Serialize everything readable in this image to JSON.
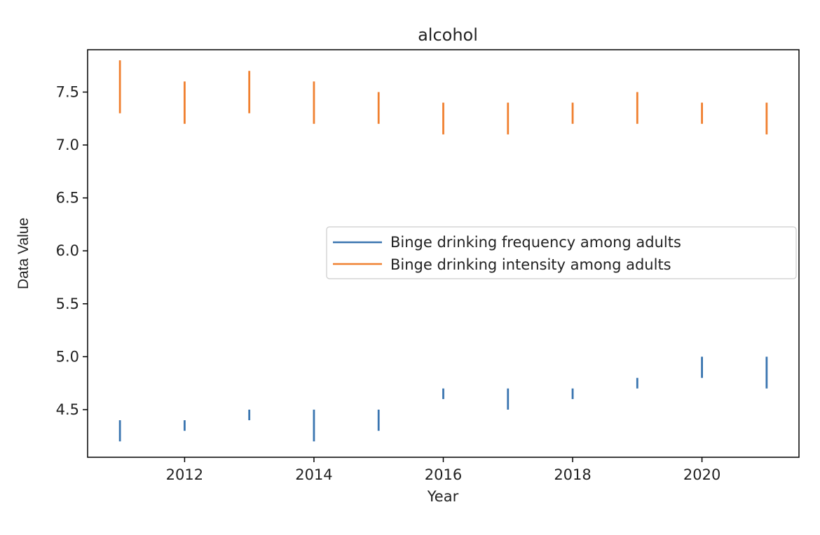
{
  "chart_data": {
    "type": "errorbar",
    "title": "alcohol",
    "xlabel": "Year",
    "ylabel": "Data Value",
    "xlim": [
      2010.5,
      2021.5
    ],
    "ylim": [
      4.05,
      7.9
    ],
    "x_ticks": [
      2012,
      2014,
      2016,
      2018,
      2020
    ],
    "x_tick_labels": [
      "2012",
      "2014",
      "2016",
      "2018",
      "2020"
    ],
    "y_ticks": [
      4.5,
      5.0,
      5.5,
      6.0,
      6.5,
      7.0,
      7.5
    ],
    "y_tick_labels": [
      "4.5",
      "5.0",
      "5.5",
      "6.0",
      "6.5",
      "7.0",
      "7.5"
    ],
    "grid": false,
    "legend_position": "center-right",
    "series": [
      {
        "name": "Binge drinking frequency among adults",
        "color": "#3a75b0",
        "x": [
          2011,
          2012,
          2013,
          2014,
          2015,
          2016,
          2017,
          2018,
          2019,
          2020,
          2021
        ],
        "low": [
          4.2,
          4.3,
          4.4,
          4.2,
          4.3,
          4.6,
          4.5,
          4.6,
          4.7,
          4.8,
          4.7
        ],
        "high": [
          4.4,
          4.4,
          4.5,
          4.5,
          4.5,
          4.7,
          4.7,
          4.7,
          4.8,
          5.0,
          5.0
        ]
      },
      {
        "name": "Binge drinking intensity among adults",
        "color": "#f08030",
        "x": [
          2011,
          2012,
          2013,
          2014,
          2015,
          2016,
          2017,
          2018,
          2019,
          2020,
          2021
        ],
        "low": [
          7.3,
          7.2,
          7.3,
          7.2,
          7.2,
          7.1,
          7.1,
          7.2,
          7.2,
          7.2,
          7.1
        ],
        "high": [
          7.8,
          7.6,
          7.7,
          7.6,
          7.5,
          7.4,
          7.4,
          7.4,
          7.5,
          7.4,
          7.4
        ]
      }
    ]
  }
}
